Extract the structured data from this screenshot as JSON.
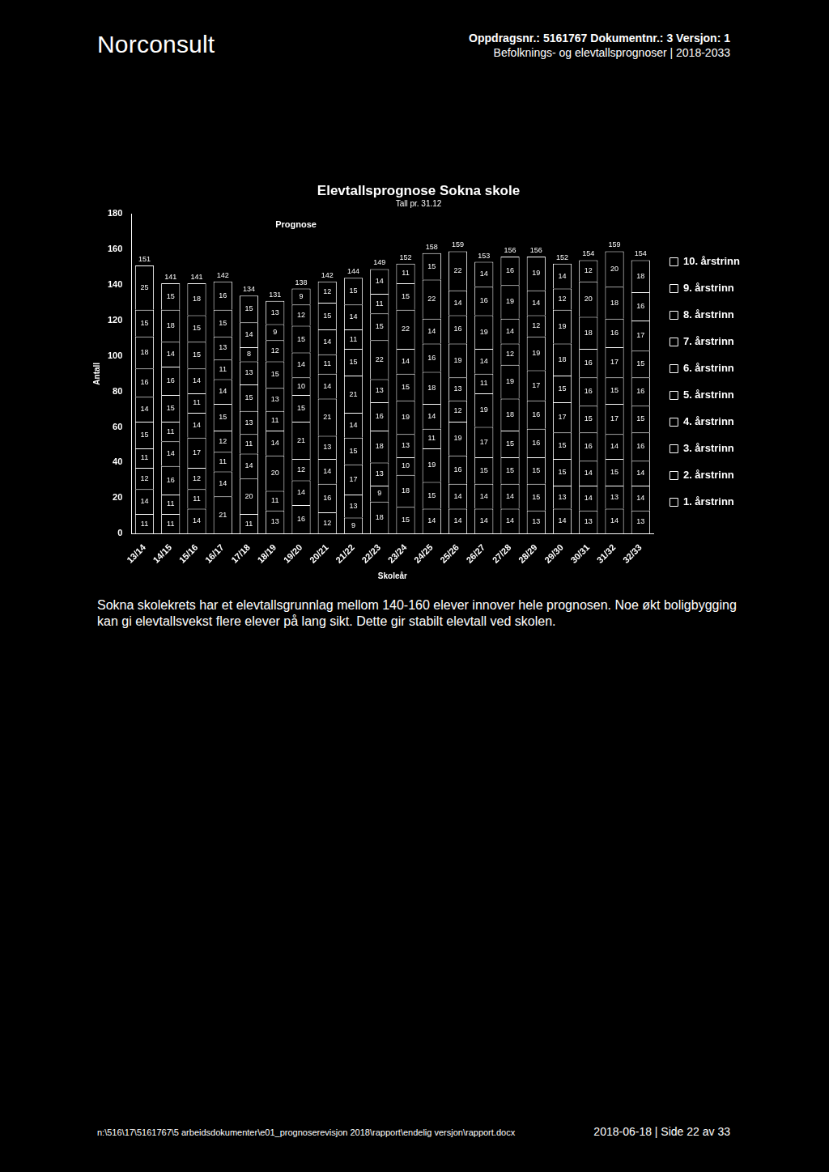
{
  "page": {
    "header": {
      "brand": "Norconsult",
      "line1": "Oppdragsnr.: 5161767 Dokumentnr.: 3 Versjon: 1",
      "line2": "Befolknings- og elevtallsprognoser | 2018-2033"
    },
    "paragraph": "Sokna skolekrets har et elevtallsgrunnlag mellom 140-160 elever innover hele prognosen. Noe økt boligbygging kan gi elevtallsvekst flere elever på lang sikt. Dette gir stabilt elevtall ved skolen.",
    "footer": {
      "path": "n:\\516\\17\\5161767\\5 arbeidsdokumenter\\e01_prognoserevisjon 2018\\rapport\\endelig versjon\\rapport.docx",
      "right": "2018-06-18 | Side 22 av 33"
    }
  },
  "chart_data": {
    "type": "bar",
    "title": "Elevtallsprognose Sokna skole",
    "subtitle": "Tall pr. 31.12",
    "annotations": [
      "Prognose"
    ],
    "x_label": "Skoleår",
    "y_label": "Antall",
    "categories": [
      "13/14",
      "14/15",
      "15/16",
      "16/17",
      "17/18",
      "18/19",
      "19/20",
      "20/21",
      "21/22",
      "22/23",
      "23/24",
      "24/25",
      "25/26",
      "26/27",
      "27/28",
      "28/29",
      "29/30",
      "30/31",
      "31/32",
      "32/33"
    ],
    "series": [
      {
        "name": "1. årstrinn",
        "color": "#000000",
        "values": [
          11,
          11,
          14,
          21,
          11,
          13,
          16,
          12,
          9,
          18,
          15,
          14,
          14,
          14,
          14,
          13,
          14,
          13,
          14,
          13
        ]
      },
      {
        "name": "2. årstrinn",
        "color": "#000000",
        "values": [
          14,
          11,
          11,
          14,
          20,
          11,
          14,
          16,
          13,
          9,
          18,
          15,
          14,
          14,
          14,
          15,
          13,
          14,
          13,
          14
        ]
      },
      {
        "name": "3. årstrinn",
        "color": "#000000",
        "values": [
          12,
          16,
          12,
          11,
          14,
          20,
          12,
          14,
          17,
          13,
          10,
          19,
          16,
          15,
          15,
          15,
          15,
          14,
          15,
          14
        ]
      },
      {
        "name": "4. årstrinn",
        "color": "#000000",
        "values": [
          11,
          14,
          17,
          12,
          11,
          14,
          21,
          13,
          15,
          18,
          13,
          11,
          19,
          17,
          15,
          16,
          15,
          16,
          14,
          16
        ]
      },
      {
        "name": "5. årstrinn",
        "color": "#000000",
        "values": [
          15,
          11,
          14,
          15,
          13,
          11,
          15,
          21,
          14,
          16,
          19,
          14,
          12,
          19,
          18,
          16,
          17,
          15,
          17,
          15
        ]
      },
      {
        "name": "6. årstrinn",
        "color": "#000000",
        "values": [
          14,
          15,
          11,
          14,
          15,
          13,
          10,
          14,
          21,
          13,
          15,
          18,
          13,
          11,
          19,
          17,
          15,
          16,
          15,
          16
        ]
      },
      {
        "name": "7. årstrinn",
        "color": "#000000",
        "values": [
          16,
          16,
          14,
          11,
          13,
          15,
          14,
          11,
          15,
          22,
          14,
          16,
          19,
          14,
          12,
          19,
          18,
          16,
          17,
          15
        ]
      },
      {
        "name": "8. årstrinn",
        "color": "#000000",
        "values": [
          18,
          14,
          15,
          13,
          8,
          12,
          15,
          14,
          11,
          15,
          22,
          14,
          16,
          19,
          14,
          12,
          19,
          18,
          16,
          17
        ]
      },
      {
        "name": "9. årstrinn",
        "color": "#000000",
        "values": [
          15,
          18,
          15,
          15,
          14,
          9,
          12,
          15,
          14,
          11,
          15,
          22,
          14,
          16,
          19,
          14,
          12,
          20,
          18,
          16
        ]
      },
      {
        "name": "10. årstrinn",
        "color": "#000000",
        "values": [
          25,
          15,
          18,
          16,
          15,
          13,
          9,
          12,
          15,
          14,
          11,
          15,
          22,
          14,
          16,
          19,
          14,
          12,
          20,
          18
        ]
      }
    ],
    "totals": [
      151,
      141,
      141,
      142,
      134,
      131,
      138,
      142,
      144,
      149,
      152,
      158,
      159,
      153,
      156,
      156,
      152,
      154,
      159,
      154
    ],
    "stacked": true,
    "data_labels": true,
    "legend": "right",
    "grid": false,
    "ylim": [
      0,
      180
    ],
    "yticks": [
      0,
      20,
      40,
      60,
      80,
      100,
      120,
      140,
      160,
      180
    ]
  }
}
